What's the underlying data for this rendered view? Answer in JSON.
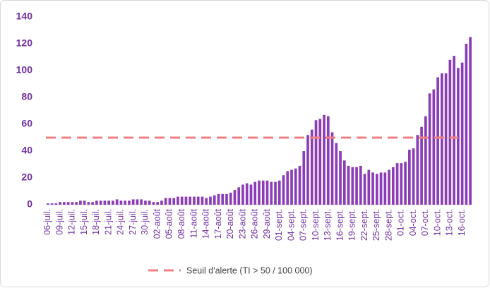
{
  "chart_data": {
    "type": "bar",
    "categories": [
      "06-juil.",
      null,
      null,
      "09-juil.",
      null,
      null,
      "12-juil.",
      null,
      null,
      "15-juil.",
      null,
      null,
      "18-juil.",
      null,
      null,
      "21-juil.",
      null,
      null,
      "24-juil.",
      null,
      null,
      "27-juil.",
      null,
      null,
      "30-juil.",
      null,
      null,
      "02-août",
      null,
      null,
      "05-août",
      null,
      null,
      "08-août",
      null,
      null,
      "11-août",
      null,
      null,
      "14-août",
      null,
      null,
      "17-août",
      null,
      null,
      "20-août",
      null,
      null,
      "23-août",
      null,
      null,
      "26-août",
      null,
      null,
      "29-août",
      null,
      null,
      "01-sept.",
      null,
      null,
      "04-sept.",
      null,
      null,
      "07-sept.",
      null,
      null,
      "10-sept.",
      null,
      null,
      "13-sept.",
      null,
      null,
      "16-sept.",
      null,
      null,
      "19-sept.",
      null,
      null,
      "22-sept.",
      null,
      null,
      "25-sept.",
      null,
      null,
      "28-sept.",
      null,
      null,
      "01-oct.",
      null,
      null,
      "04-oct.",
      null,
      null,
      "07-oct.",
      null,
      null,
      "10-oct.",
      null,
      null,
      "13-oct.",
      null,
      null,
      "16-oct.",
      null,
      null
    ],
    "values": [
      1,
      1,
      1,
      2,
      2,
      2,
      2,
      2,
      3,
      3,
      2,
      2,
      3,
      3,
      3,
      3,
      3,
      4,
      3,
      3,
      3,
      4,
      4,
      4,
      3,
      3,
      2,
      2,
      3,
      5,
      5,
      5,
      6,
      6,
      6,
      6,
      6,
      6,
      6,
      5,
      6,
      7,
      8,
      8,
      8,
      9,
      11,
      13,
      15,
      16,
      15,
      17,
      18,
      18,
      18,
      17,
      17,
      18,
      22,
      25,
      26,
      27,
      29,
      40,
      52,
      56,
      63,
      64,
      67,
      66,
      54,
      46,
      40,
      33,
      29,
      28,
      28,
      29,
      23,
      26,
      24,
      23,
      24,
      24,
      26,
      28,
      31,
      31,
      32,
      41,
      42,
      52,
      58,
      66,
      83,
      86,
      95,
      98,
      98,
      108,
      111,
      102,
      106,
      120,
      125
    ],
    "color": "#8a3db5",
    "threshold": {
      "name": "Seuil d'alerte (TI > 50 / 100 000)",
      "value": 50,
      "color": "#f08080"
    },
    "ylim": [
      0,
      140
    ],
    "yticks": [
      0,
      20,
      40,
      60,
      80,
      100,
      120,
      140
    ]
  }
}
